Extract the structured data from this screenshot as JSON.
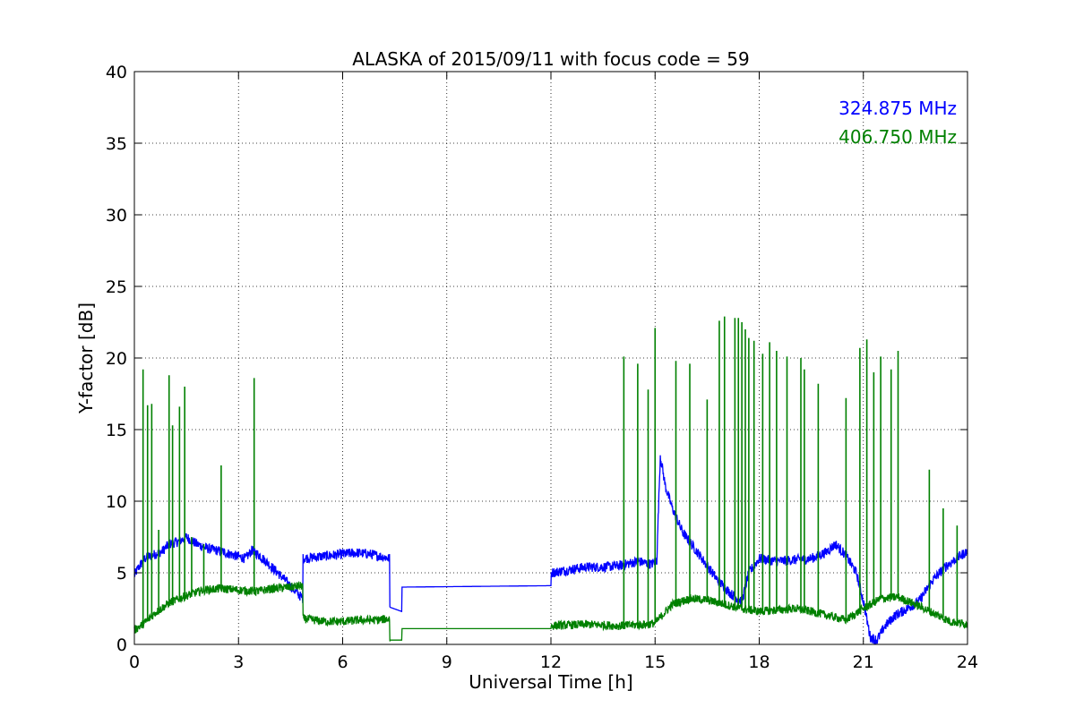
{
  "chart_data": {
    "type": "line",
    "title": "ALASKA of 2015/09/11 with focus code = 59",
    "xlabel": "Universal Time [h]",
    "ylabel": "Y-factor [dB]",
    "xlim": [
      0,
      24
    ],
    "ylim": [
      0,
      40
    ],
    "xticks": [
      0,
      3,
      6,
      9,
      12,
      15,
      18,
      21,
      24
    ],
    "yticks": [
      0,
      5,
      10,
      15,
      20,
      25,
      30,
      35,
      40
    ],
    "xtick_labels": [
      "0",
      "3",
      "6",
      "9",
      "12",
      "15",
      "18",
      "21",
      "24"
    ],
    "ytick_labels": [
      "0",
      "5",
      "10",
      "15",
      "20",
      "25",
      "30",
      "35",
      "40"
    ],
    "grid": true,
    "legend_placement": "top-right",
    "series": [
      {
        "name": "324.875 MHz",
        "color": "#0000ff",
        "x": [
          0,
          0.1,
          0.3,
          0.5,
          0.8,
          1.0,
          1.3,
          1.5,
          1.8,
          2.1,
          2.5,
          2.9,
          3.2,
          3.4,
          3.7,
          4.0,
          4.3,
          4.6,
          4.85,
          4.86,
          5.2,
          5.6,
          6.0,
          6.4,
          6.8,
          7.2,
          7.35,
          7.36,
          7.7,
          7.71,
          12.0,
          12.01,
          12.5,
          13.0,
          13.5,
          14.0,
          14.5,
          14.9,
          15.05,
          15.15,
          15.3,
          15.5,
          15.8,
          16.2,
          16.5,
          16.8,
          17.2,
          17.5,
          17.7,
          18.0,
          18.5,
          19.0,
          19.5,
          19.9,
          20.2,
          20.5,
          20.8,
          21.0,
          21.2,
          21.4,
          21.6,
          21.9,
          22.2,
          22.6,
          23.0,
          23.4,
          23.8,
          24.0
        ],
        "values": [
          4.8,
          5.3,
          6.0,
          6.2,
          6.5,
          7.0,
          7.2,
          7.5,
          7.0,
          6.7,
          6.5,
          6.2,
          6.0,
          6.6,
          6.0,
          5.3,
          4.6,
          3.8,
          3.2,
          6.0,
          6.1,
          6.2,
          6.3,
          6.4,
          6.3,
          6.1,
          6.0,
          2.6,
          2.3,
          4.0,
          4.1,
          5.0,
          5.2,
          5.4,
          5.4,
          5.5,
          5.8,
          5.6,
          5.9,
          13.2,
          11.0,
          9.5,
          7.8,
          6.5,
          5.5,
          4.5,
          3.5,
          3.0,
          5.0,
          6.0,
          5.8,
          5.9,
          6.0,
          6.4,
          7.0,
          6.2,
          5.0,
          3.0,
          0.5,
          0.3,
          1.2,
          2.0,
          2.4,
          3.0,
          4.5,
          5.5,
          6.2,
          6.5
        ]
      },
      {
        "name": "406.750 MHz",
        "color": "#008000",
        "x": [
          0,
          0.3,
          0.6,
          1.0,
          1.5,
          2.0,
          2.5,
          3.0,
          3.5,
          4.0,
          4.5,
          4.85,
          4.86,
          5.5,
          6.0,
          6.5,
          7.0,
          7.35,
          7.36,
          7.7,
          7.71,
          12.0,
          12.01,
          13.0,
          14.0,
          14.8,
          15.0,
          15.5,
          16.0,
          16.5,
          17.0,
          17.5,
          18.0,
          18.5,
          19.0,
          19.5,
          20.0,
          20.5,
          21.0,
          21.5,
          22.0,
          22.5,
          23.0,
          23.5,
          24.0
        ],
        "values": [
          1.0,
          1.5,
          2.2,
          2.9,
          3.4,
          3.8,
          3.9,
          3.8,
          3.7,
          3.9,
          4.0,
          4.1,
          1.8,
          1.6,
          1.6,
          1.7,
          1.7,
          1.8,
          0.3,
          0.3,
          1.1,
          1.1,
          1.3,
          1.4,
          1.3,
          1.4,
          1.5,
          2.8,
          3.2,
          3.1,
          2.8,
          2.5,
          2.3,
          2.4,
          2.5,
          2.3,
          2.0,
          1.7,
          2.5,
          3.2,
          3.3,
          2.8,
          2.2,
          1.6,
          1.4
        ]
      }
    ],
    "spikes": [
      {
        "series": "406.750 MHz",
        "x": [
          0.25,
          0.38,
          0.5,
          0.7,
          1.0,
          1.1,
          1.3,
          1.45,
          1.65,
          2.0,
          2.5,
          3.45,
          14.1,
          14.5,
          14.8,
          15.0,
          15.6,
          16.0,
          16.5,
          16.85,
          17.0,
          17.3,
          17.4,
          17.5,
          17.6,
          17.7,
          17.85,
          18.1,
          18.3,
          18.5,
          18.8,
          19.2,
          19.3,
          19.7,
          20.5,
          20.9,
          21.1,
          21.3,
          21.5,
          21.8,
          22.0,
          22.9,
          23.3,
          23.7
        ],
        "values": [
          19.2,
          16.7,
          16.8,
          8.0,
          18.8,
          15.3,
          16.6,
          18.0,
          7.5,
          7.0,
          12.5,
          18.6,
          20.1,
          19.6,
          17.8,
          22.1,
          19.8,
          19.6,
          17.1,
          22.6,
          22.9,
          22.8,
          22.8,
          22.5,
          22.0,
          21.4,
          21.2,
          20.3,
          21.1,
          20.5,
          20.1,
          20.0,
          19.2,
          18.2,
          17.2,
          20.7,
          21.3,
          19.0,
          20.1,
          19.2,
          20.5,
          12.2,
          9.5,
          8.3
        ]
      },
      {
        "series": "324.875 MHz",
        "x": [
          3.45
        ],
        "values": [
          6.7
        ]
      }
    ]
  }
}
